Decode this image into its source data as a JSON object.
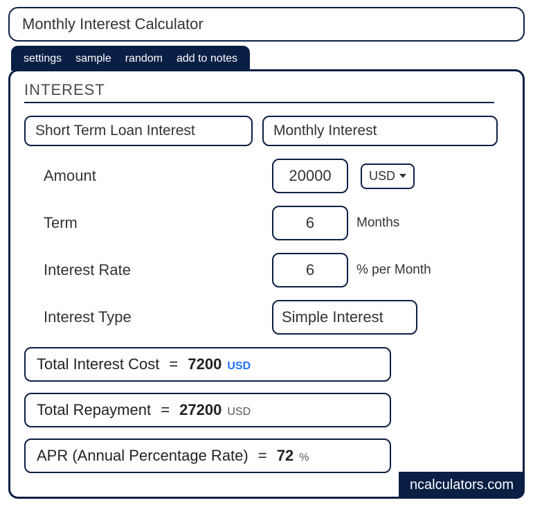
{
  "title": "Monthly Interest Calculator",
  "tabs": {
    "settings": "settings",
    "sample": "sample",
    "random": "random",
    "add_to_notes": "add to notes"
  },
  "section_title": "INTEREST",
  "types": {
    "short_term": "Short Term Loan Interest",
    "monthly": "Monthly Interest"
  },
  "fields": {
    "amount": {
      "label": "Amount",
      "value": "20000",
      "currency": "USD"
    },
    "term": {
      "label": "Term",
      "value": "6",
      "unit": "Months"
    },
    "rate": {
      "label": "Interest Rate",
      "value": "6",
      "unit": "% per Month"
    },
    "interest_type": {
      "label": "Interest Type",
      "value": "Simple Interest"
    }
  },
  "results": {
    "total_interest": {
      "label": "Total Interest Cost",
      "value": "7200",
      "unit": "USD"
    },
    "total_repayment": {
      "label": "Total Repayment",
      "value": "27200",
      "unit": "USD"
    },
    "apr": {
      "label": "APR (Annual Percentage Rate)",
      "value": "72",
      "unit": "%"
    }
  },
  "footer": "ncalculators.com",
  "colors": {
    "primary": "#0a1f44",
    "accent_blue": "#1e73ff",
    "text": "#333333",
    "background": "#ffffff"
  }
}
